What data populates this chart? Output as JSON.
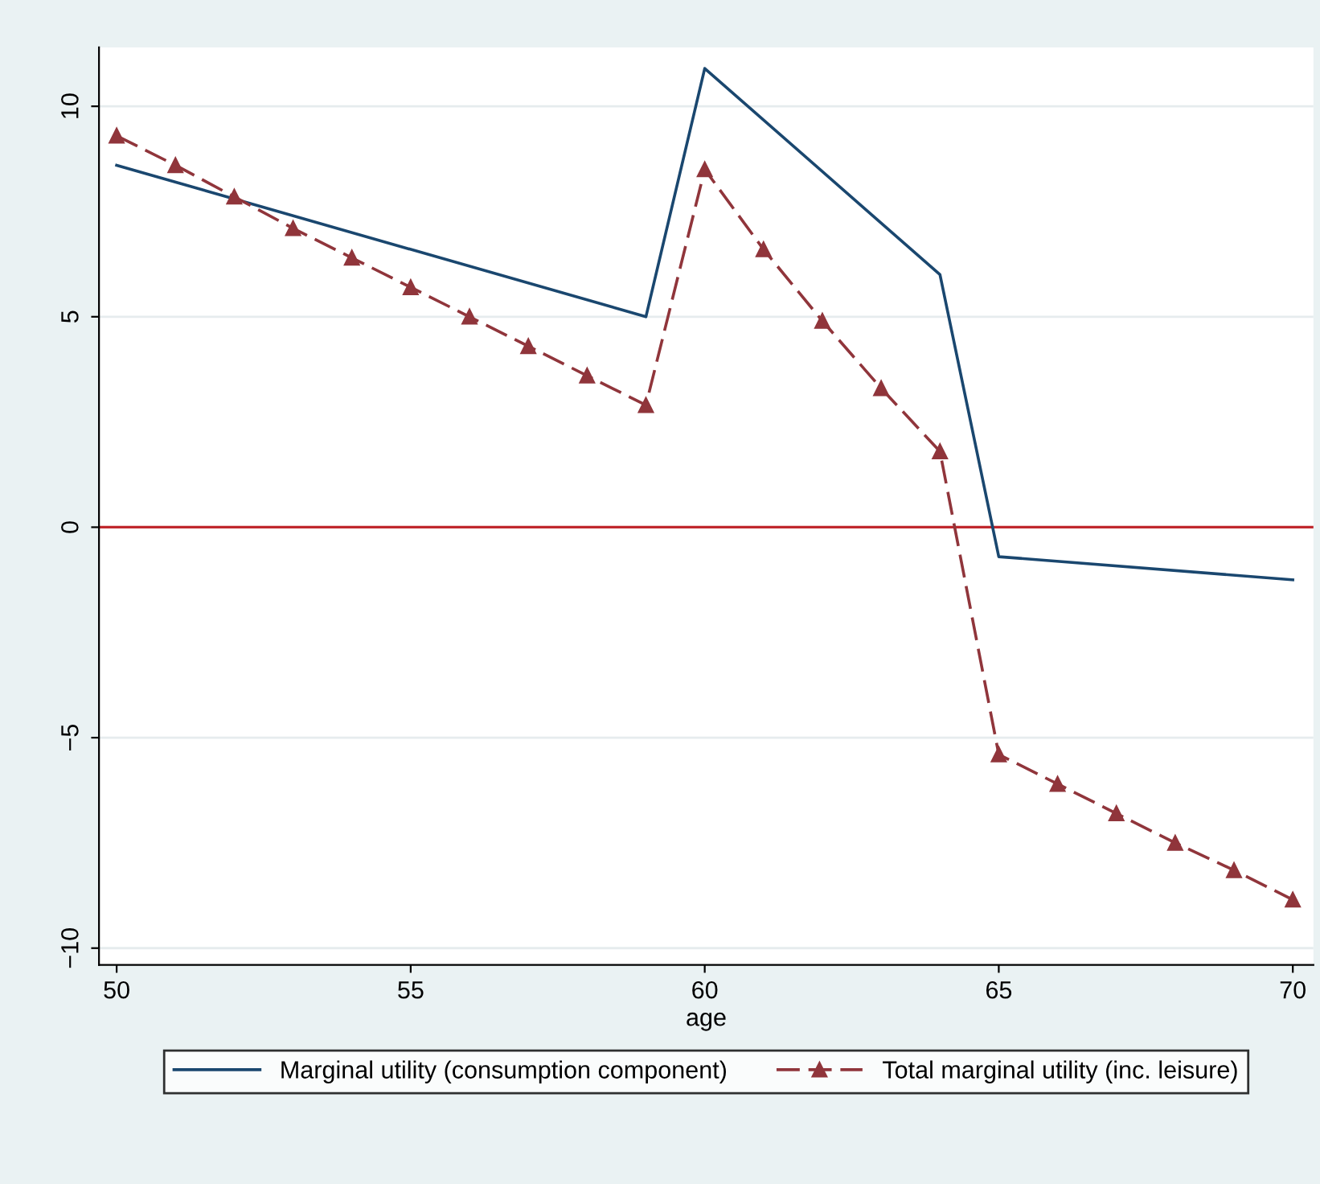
{
  "chart_data": {
    "type": "line",
    "xlabel": "age",
    "x": [
      50,
      51,
      52,
      53,
      54,
      55,
      56,
      57,
      58,
      59,
      60,
      61,
      62,
      63,
      64,
      65,
      66,
      67,
      68,
      69,
      70
    ],
    "series": [
      {
        "name": "Marginal utility (consumption component)",
        "color": "#1a476f",
        "x": [
          50,
          59,
          60,
          64,
          65,
          70
        ],
        "values": [
          8.6,
          5.0,
          10.9,
          6.0,
          -0.7,
          -1.25
        ],
        "marker": "none",
        "line_style": "solid"
      },
      {
        "name": "Total marginal utility (inc. leisure)",
        "color": "#90353b",
        "values": [
          9.3,
          8.6,
          7.85,
          7.1,
          6.4,
          5.7,
          5.0,
          4.3,
          3.6,
          2.9,
          8.5,
          6.6,
          4.9,
          3.3,
          1.8,
          -5.4,
          -6.1,
          -6.8,
          -7.5,
          -8.15,
          -8.85
        ],
        "marker": "triangle",
        "line_style": "dashed"
      }
    ],
    "xlim": [
      49.7,
      70.35
    ],
    "ylim": [
      -10.4,
      11.4
    ],
    "xticks": [
      50,
      55,
      60,
      65,
      70
    ],
    "yticks": [
      {
        "value": -10,
        "label": "−10"
      },
      {
        "value": -5,
        "label": "−5"
      },
      0,
      5,
      10
    ],
    "ref_lines": [
      {
        "axis": "y",
        "value": 0,
        "color": "#c0282d"
      }
    ],
    "grid": "y",
    "legend": "bottom"
  }
}
